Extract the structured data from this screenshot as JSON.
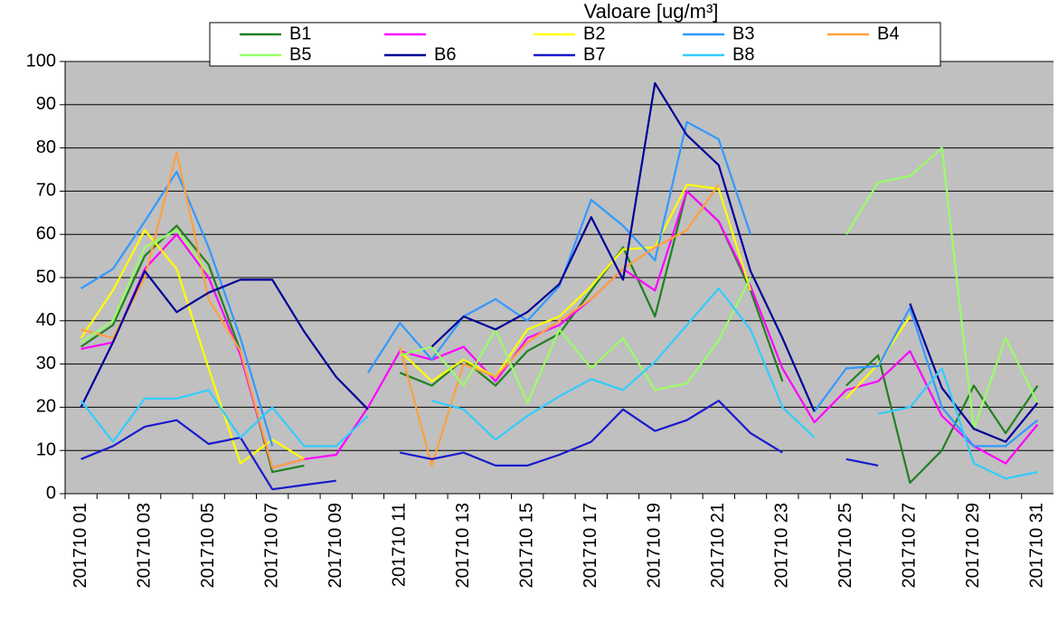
{
  "chart_data": {
    "type": "line",
    "title": "Valoare [ug/m³]",
    "categories": [
      "201710 01",
      null,
      "201710 03",
      null,
      "201710 05",
      null,
      "201710 07",
      null,
      "201710 09",
      null,
      "201710 11",
      null,
      "201710 13",
      null,
      "201710 15",
      null,
      "201710 17",
      null,
      "201710 19",
      null,
      "201710 21",
      null,
      "201710 23",
      null,
      "201710 25",
      null,
      "201710 27",
      null,
      "201710 29",
      null,
      "201710 31"
    ],
    "series": [
      {
        "name": "B1",
        "color": "#208020",
        "values": [
          34,
          39,
          55,
          62,
          53,
          33,
          5,
          6.5,
          null,
          null,
          28,
          25,
          31,
          25,
          33,
          37,
          47,
          57,
          41,
          70,
          63,
          47,
          26,
          null,
          25,
          32,
          2.5,
          10,
          25,
          14,
          25
        ]
      },
      {
        "name": null,
        "color": "#ff00ff",
        "values": [
          33.5,
          35,
          52,
          60,
          50,
          32,
          6,
          8,
          9,
          20,
          33,
          31,
          34,
          26,
          36,
          39,
          45,
          52,
          47,
          70,
          63,
          48,
          29,
          16.5,
          24,
          26,
          33,
          18,
          11,
          7,
          16
        ]
      },
      {
        "name": "B2",
        "color": "#ffff00",
        "values": [
          36,
          47,
          61,
          52,
          29,
          7,
          12.5,
          8,
          null,
          null,
          33,
          26,
          31,
          27,
          38,
          41,
          48,
          56.5,
          57,
          71.5,
          70.5,
          47,
          null,
          null,
          22,
          30,
          41,
          null,
          null,
          null,
          null
        ]
      },
      {
        "name": "B3",
        "color": "#3399ff",
        "values": [
          47.5,
          52,
          63,
          74.5,
          57,
          36,
          11,
          null,
          null,
          28,
          39.5,
          31,
          41,
          45,
          40,
          48,
          68,
          62,
          54,
          86,
          82,
          60,
          null,
          19,
          29,
          29.5,
          43,
          20,
          11,
          11,
          17
        ]
      },
      {
        "name": "B4",
        "color": "#ffa040",
        "values": [
          38,
          36,
          50,
          79,
          45,
          33,
          6,
          8,
          null,
          null,
          34,
          6.5,
          30,
          27,
          35,
          40,
          45,
          52,
          57,
          61,
          71.5,
          null,
          null,
          null,
          null,
          null,
          null,
          null,
          null,
          null,
          null
        ]
      },
      {
        "name": "B5",
        "color": "#99ff66",
        "values": [
          35,
          40,
          57,
          61,
          51,
          null,
          null,
          null,
          null,
          null,
          32,
          34,
          25,
          38,
          21,
          38,
          29,
          36,
          24,
          25.5,
          35.5,
          50,
          null,
          null,
          60,
          72,
          73.5,
          80,
          15,
          36,
          21
        ]
      },
      {
        "name": "B6",
        "color": "#000099",
        "values": [
          20,
          35,
          51.5,
          42,
          46.5,
          49.5,
          49.5,
          37.5,
          27,
          19.5,
          null,
          34,
          41,
          38,
          42,
          48.5,
          64,
          49.5,
          95,
          83,
          76,
          51.5,
          36,
          19,
          null,
          null,
          44,
          24.5,
          15,
          12,
          21
        ]
      },
      {
        "name": "B7",
        "color": "#1a1acc",
        "values": [
          8,
          11,
          15.5,
          17,
          11.5,
          13,
          1,
          2,
          3,
          null,
          9.5,
          8,
          9.5,
          6.5,
          6.5,
          9,
          12,
          19.5,
          14.5,
          17,
          21.5,
          14,
          9.5,
          null,
          8,
          6.5,
          null,
          null,
          null,
          null,
          null
        ]
      },
      {
        "name": "B8",
        "color": "#33ccff",
        "values": [
          21.5,
          12,
          22,
          22,
          24,
          13,
          20,
          11,
          11,
          18,
          null,
          21.5,
          19.5,
          12.5,
          18,
          22.5,
          26.5,
          24,
          30.5,
          39,
          47.5,
          38,
          20,
          13,
          null,
          18.5,
          20,
          29,
          7,
          3.5,
          5
        ]
      }
    ],
    "ylim": [
      0,
      100
    ],
    "yticks": [
      0,
      10,
      20,
      30,
      40,
      50,
      60,
      70,
      80,
      90,
      100
    ],
    "grid": true
  }
}
